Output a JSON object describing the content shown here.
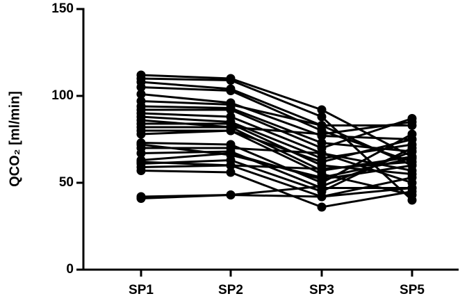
{
  "chart_data": {
    "type": "line",
    "y_label": "QCO₂ [ml/min]",
    "categories": [
      "SP1",
      "SP2",
      "SP3",
      "SP5"
    ],
    "color": "#000000",
    "ylim": [
      0,
      150
    ],
    "yticks": [
      0,
      50,
      100,
      150
    ],
    "series": [
      {
        "values": [
          112,
          110,
          92,
          65
        ]
      },
      {
        "values": [
          110,
          109,
          88,
          40
        ]
      },
      {
        "values": [
          108,
          104,
          83,
          60
        ]
      },
      {
        "values": [
          105,
          103,
          80,
          62
        ]
      },
      {
        "values": [
          101,
          96,
          77,
          75
        ]
      },
      {
        "values": [
          97,
          95,
          83,
          83
        ]
      },
      {
        "values": [
          94,
          93,
          73,
          68
        ]
      },
      {
        "values": [
          92,
          92,
          70,
          87
        ]
      },
      {
        "values": [
          90,
          88,
          67,
          50
        ]
      },
      {
        "values": [
          88,
          85,
          64,
          72
        ]
      },
      {
        "values": [
          86,
          82,
          78,
          85
        ]
      },
      {
        "values": [
          84,
          84,
          60,
          55
        ]
      },
      {
        "values": [
          82,
          82,
          57,
          65
        ]
      },
      {
        "values": [
          80,
          80,
          55,
          43
        ]
      },
      {
        "values": [
          78,
          80,
          62,
          75
        ]
      },
      {
        "values": [
          73,
          72,
          50,
          78
        ]
      },
      {
        "values": [
          70,
          70,
          67,
          57
        ]
      },
      {
        "values": [
          67,
          68,
          47,
          47
        ]
      },
      {
        "values": [
          63,
          67,
          52,
          60
        ]
      },
      {
        "values": [
          61,
          63,
          45,
          70
        ]
      },
      {
        "values": [
          59,
          60,
          42,
          53
        ]
      },
      {
        "values": [
          57,
          56,
          36,
          45
        ]
      },
      {
        "values": [
          62,
          60,
          58,
          62
        ]
      },
      {
        "values": [
          42,
          43,
          42,
          47
        ]
      },
      {
        "values": [
          41,
          43,
          48,
          68
        ]
      },
      {
        "values": [
          72,
          66,
          53,
          64
        ]
      }
    ]
  }
}
